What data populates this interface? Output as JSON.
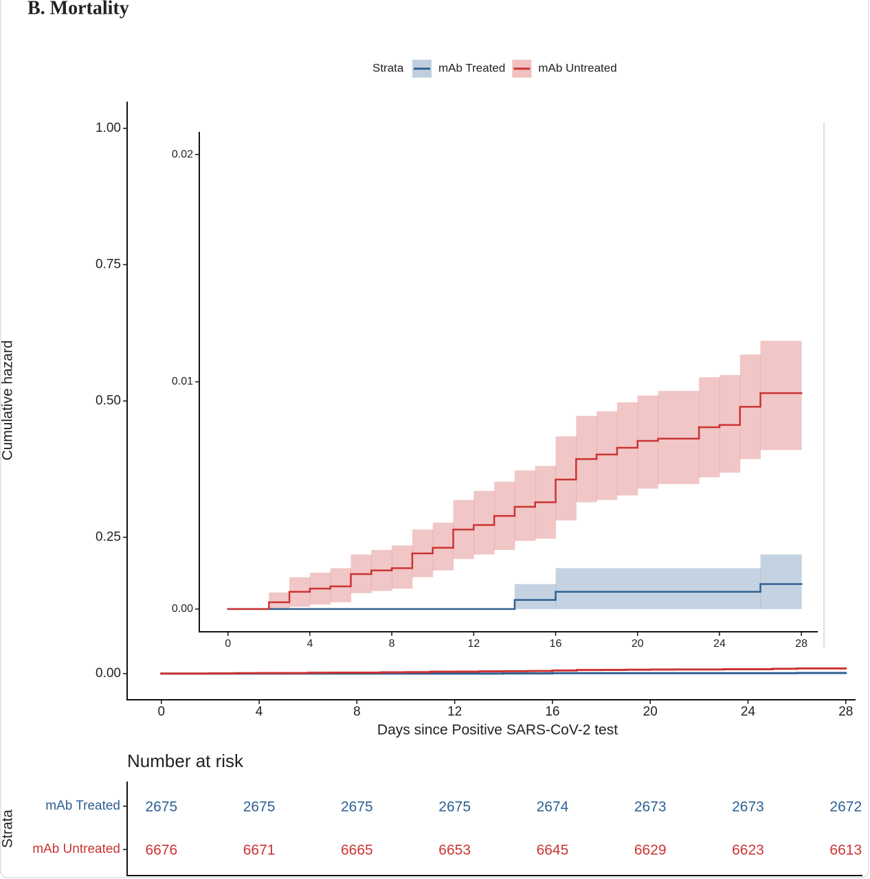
{
  "chart_data": {
    "type": "step",
    "title": "B.  Mortality",
    "legend_title": "Strata",
    "x_label": "Days since Positive SARS-CoV-2 test",
    "y_label": "Cumulative hazard",
    "xlim": [
      -1.4,
      28.4
    ],
    "ylim": [
      -0.048,
      1.049
    ],
    "xticks": [
      0,
      4,
      8,
      12,
      16,
      20,
      24,
      28
    ],
    "yticks": [
      {
        "value": 0,
        "label": "0.00"
      },
      {
        "value": 0.25,
        "label": "0.25"
      },
      {
        "value": 0.5,
        "label": "0.50"
      },
      {
        "value": 0.75,
        "label": "0.75"
      },
      {
        "value": 1,
        "label": "1.00"
      }
    ],
    "inset": {
      "xlim": [
        -1.4,
        28.8
      ],
      "ylim": [
        -0.001,
        0.021
      ],
      "xticks": [
        0,
        4,
        8,
        12,
        16,
        20,
        24,
        28
      ],
      "yticks": [
        {
          "value": 0,
          "label": "0.00"
        },
        {
          "value": 0.01,
          "label": "0.01"
        },
        {
          "value": 0.02,
          "label": "0.02"
        }
      ]
    },
    "series": [
      {
        "name": "mAb Treated",
        "color": "#2e5f93",
        "x": [
          0,
          14,
          16,
          26,
          28
        ],
        "values": [
          0,
          0.0004,
          0.00076,
          0.0011,
          0.0011
        ],
        "upper": [
          0,
          0.0011,
          0.0018,
          0.0024,
          0.0024
        ],
        "lower": [
          0,
          0,
          0,
          0,
          0
        ]
      },
      {
        "name": "mAb Untreated",
        "color": "#cc3333",
        "x": [
          0,
          2,
          3,
          4,
          5,
          6,
          7,
          8,
          9,
          10,
          11,
          12,
          13,
          14,
          15,
          16,
          17,
          18,
          19,
          20,
          21,
          23,
          24,
          25,
          26,
          28
        ],
        "values": [
          0,
          0.0003,
          0.00076,
          0.0009,
          0.001,
          0.00154,
          0.0017,
          0.0018,
          0.00245,
          0.0027,
          0.0035,
          0.0037,
          0.0041,
          0.0045,
          0.0047,
          0.0057,
          0.0066,
          0.0068,
          0.0071,
          0.0074,
          0.0075,
          0.008,
          0.0081,
          0.0089,
          0.0095,
          0.0095
        ],
        "upper": [
          0,
          0.00073,
          0.0014,
          0.0016,
          0.0018,
          0.0024,
          0.0026,
          0.0028,
          0.0035,
          0.0038,
          0.0048,
          0.0052,
          0.0056,
          0.0061,
          0.0063,
          0.0076,
          0.0085,
          0.0087,
          0.0091,
          0.0094,
          0.0096,
          0.0102,
          0.0103,
          0.0112,
          0.0118,
          0.0118
        ],
        "lower": [
          0,
          0,
          0.0001,
          0.0002,
          0.0003,
          0.0007,
          0.0008,
          0.0009,
          0.0014,
          0.0017,
          0.0022,
          0.0024,
          0.0026,
          0.003,
          0.0031,
          0.0039,
          0.0047,
          0.0048,
          0.005,
          0.0053,
          0.0055,
          0.0058,
          0.006,
          0.0066,
          0.007,
          0.007
        ]
      }
    ],
    "risk_table": {
      "title": "Number at risk",
      "strata_label": "Strata",
      "rows": [
        {
          "name": "mAb Treated",
          "values": [
            2675,
            2675,
            2675,
            2675,
            2674,
            2673,
            2673,
            2672
          ]
        },
        {
          "name": "mAb Untreated",
          "values": [
            6676,
            6671,
            6665,
            6653,
            6645,
            6629,
            6623,
            6613
          ]
        }
      ]
    }
  }
}
